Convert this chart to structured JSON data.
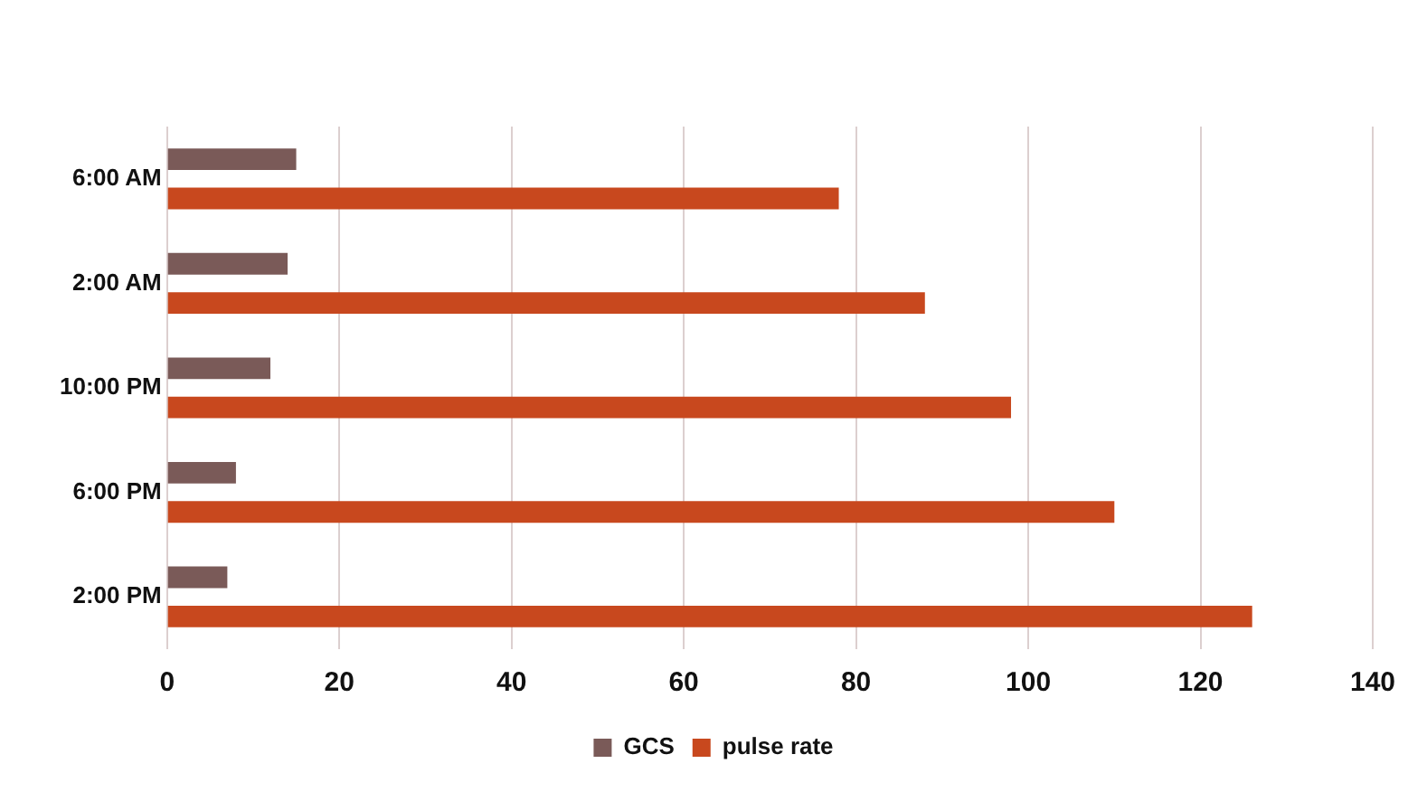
{
  "chart_data": {
    "type": "bar",
    "orientation": "horizontal",
    "categories": [
      "6:00 AM",
      "2:00 AM",
      "10:00 PM",
      "6:00 PM",
      "2:00 PM"
    ],
    "series": [
      {
        "name": "GCS",
        "color": "#7a5a58",
        "values": [
          15,
          14,
          12,
          8,
          7
        ]
      },
      {
        "name": "pulse rate",
        "color": "#c8481e",
        "values": [
          78,
          88,
          98,
          110,
          126
        ]
      }
    ],
    "xlim": [
      0,
      140
    ],
    "xticks": [
      0,
      20,
      40,
      60,
      80,
      100,
      120,
      140
    ],
    "grid": "x",
    "legend": "bottom"
  }
}
